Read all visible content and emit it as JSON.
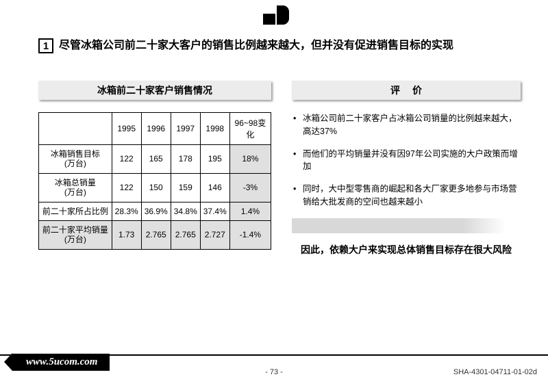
{
  "title_number": "1",
  "title_text": "尽管冰箱公司前二十家大客户的销售比例越来越大，但并没有促进销售目标的实现",
  "left_header": "冰箱前二十家客户销售情况",
  "right_header": "评价",
  "table": {
    "col_headers": [
      "",
      "1995",
      "1996",
      "1997",
      "1998",
      "96~98变化"
    ],
    "rows": [
      {
        "label": "冰箱销售目标\n(万台)",
        "cells": [
          "122",
          "165",
          "178",
          "195",
          "18%"
        ]
      },
      {
        "label": "冰箱总销量\n(万台)",
        "cells": [
          "122",
          "150",
          "159",
          "146",
          "-3%"
        ]
      },
      {
        "label": "前二十家所占比例",
        "cells": [
          "28.3%",
          "36.9%",
          "34.8%",
          "37.4%",
          "1.4%"
        ]
      },
      {
        "label": "前二十家平均销量(万台)",
        "cells": [
          "1.73",
          "2.765",
          "2.765",
          "2.727",
          "-1.4%"
        ],
        "highlight": true
      }
    ],
    "highlight_last_col": true
  },
  "bullets": [
    "冰箱公司前二十家客户占冰箱公司销量的比例越来越大，高达37%",
    "而他们的平均销量并没有因97年公司实施的大户政策而增加",
    "同时，大中型零售商的崛起和各大厂家更多地参与市场营销给大批发商的空间也越来越小"
  ],
  "conclusion": "因此，依赖大户来实现总体销售目标存在很大风险",
  "footer": {
    "url": "www.5ucom.com",
    "page": "- 73 -",
    "code": "SHA-4301-04711-01-02d"
  },
  "colors": {
    "header_bg": "#ececec",
    "hl_bg": "#e0e0e0",
    "arrow_bg": "#d8d8d8"
  }
}
